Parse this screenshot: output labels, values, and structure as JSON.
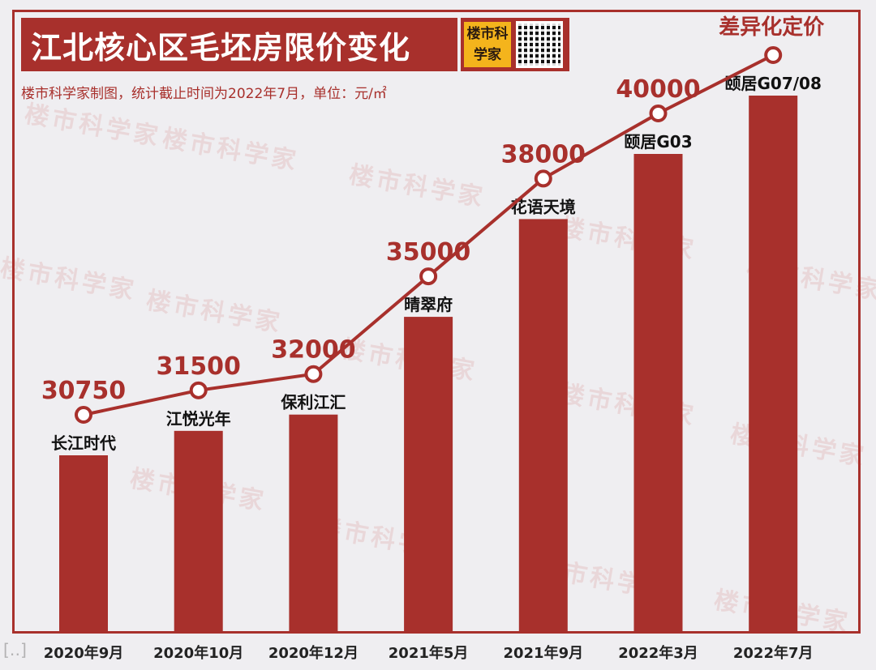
{
  "title": "江北核心区毛坯房限价变化",
  "subtitle": "楼市科学家制图，统计截止时间为2022年7月，单位：元/㎡",
  "logo": {
    "text": "楼市科学家",
    "icon": "qr-code-icon"
  },
  "watermark_text": "楼市科学家",
  "corner_mark": "[‥]",
  "colors": {
    "accent": "#a8302c",
    "background": "#efeef1"
  },
  "chart_data": {
    "type": "bar",
    "title": "江北核心区毛坯房限价变化",
    "categories": [
      "2020年9月",
      "2020年10月",
      "2020年12月",
      "2021年5月",
      "2021年9月",
      "2022年3月",
      "2022年7月"
    ],
    "projects": [
      "长江时代",
      "江悦光年",
      "保利江汇",
      "晴翠府",
      "花语天境",
      "颐居G03",
      "颐居G07/08"
    ],
    "values": [
      30750,
      31500,
      32000,
      35000,
      38000,
      40000,
      null
    ],
    "value_labels": [
      "30750",
      "31500",
      "32000",
      "35000",
      "38000",
      "40000",
      "差异化定价"
    ],
    "line_overlay": true,
    "xlabel": "",
    "ylabel": "",
    "ylim": [
      27000,
      44000
    ],
    "grid": false,
    "legend": "none"
  }
}
